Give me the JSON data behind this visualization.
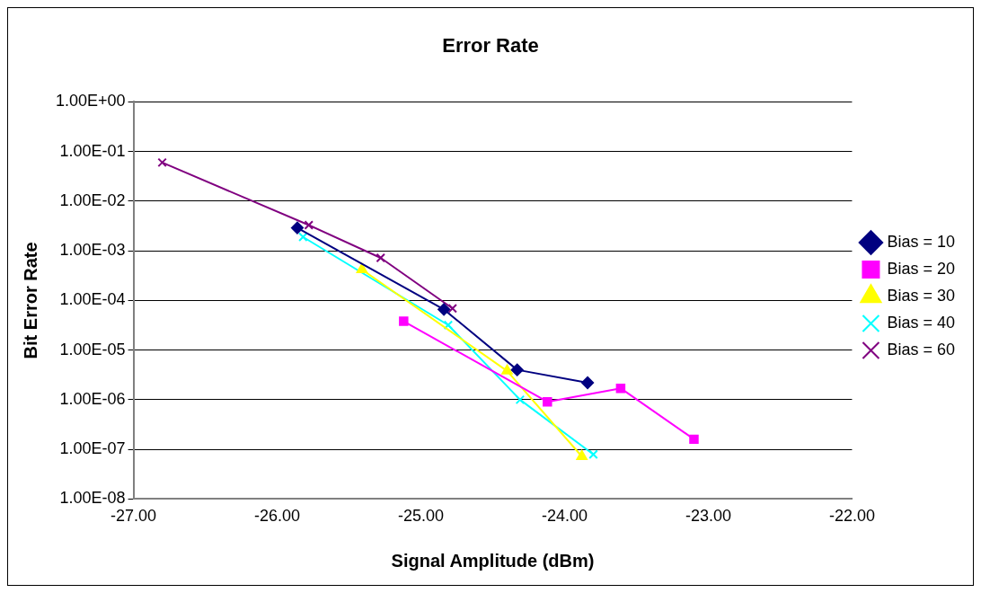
{
  "chart_data": {
    "type": "line",
    "title": "Error Rate",
    "xlabel": "Signal Amplitude (dBm)",
    "ylabel": "Bit Error Rate",
    "log": "y",
    "grid": "y",
    "legend": "right",
    "xlim": [
      -27,
      -22
    ],
    "xticks": [
      {
        "value": -27,
        "label": "-27.00"
      },
      {
        "value": -26,
        "label": "-26.00"
      },
      {
        "value": -25,
        "label": "-25.00"
      },
      {
        "value": -24,
        "label": "-24.00"
      },
      {
        "value": -23,
        "label": "-23.00"
      },
      {
        "value": -22,
        "label": "-22.00"
      }
    ],
    "ylim": [
      1e-08,
      1
    ],
    "yticks": [
      {
        "value": 1e-08,
        "label": "1.00E-08"
      },
      {
        "value": 1e-07,
        "label": "1.00E-07"
      },
      {
        "value": 1e-06,
        "label": "1.00E-06"
      },
      {
        "value": 1e-05,
        "label": "1.00E-05"
      },
      {
        "value": 0.0001,
        "label": "1.00E-04"
      },
      {
        "value": 0.001,
        "label": "1.00E-03"
      },
      {
        "value": 0.01,
        "label": "1.00E-02"
      },
      {
        "value": 0.1,
        "label": "1.00E-01"
      },
      {
        "value": 1,
        "label": "1.00E+00"
      }
    ],
    "series": [
      {
        "name": "Bias = 10",
        "color": "#000080",
        "marker": "diamond",
        "x": [
          -25.86,
          -24.84,
          -24.33,
          -23.84
        ],
        "values": [
          0.0029,
          6.6e-05,
          4e-06,
          2.2e-06
        ]
      },
      {
        "name": "Bias = 20",
        "color": "#ff00ff",
        "marker": "square",
        "x": [
          -25.12,
          -24.12,
          -23.61,
          -23.1
        ],
        "values": [
          3.8e-05,
          9.1e-07,
          1.7e-06,
          1.6e-07
        ]
      },
      {
        "name": "Bias = 30",
        "color": "#ffff00",
        "marker": "triangle",
        "x": [
          -25.41,
          -24.4,
          -23.88
        ],
        "values": [
          0.00042,
          3.8e-06,
          7.2e-08
        ]
      },
      {
        "name": "Bias = 40",
        "color": "#00ffff",
        "marker": "cross",
        "x": [
          -25.82,
          -24.81,
          -24.31,
          -23.8
        ],
        "values": [
          0.0019,
          3.2e-05,
          1e-06,
          7.9e-08
        ]
      },
      {
        "name": "Bias = 60",
        "color": "#800080",
        "marker": "cross",
        "x": [
          -26.8,
          -25.78,
          -25.28,
          -24.78
        ],
        "values": [
          0.06,
          0.0033,
          0.00072,
          6.9e-05
        ]
      }
    ]
  }
}
